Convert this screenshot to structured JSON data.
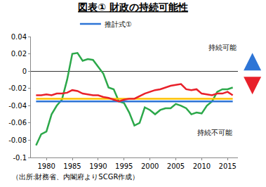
{
  "chart_data": {
    "type": "line",
    "title": "図表① 財政の持続可能性",
    "x": [
      1978,
      1979,
      1980,
      1981,
      1982,
      1983,
      1984,
      1985,
      1986,
      1987,
      1988,
      1989,
      1990,
      1991,
      1992,
      1993,
      1994,
      1995,
      1996,
      1997,
      1998,
      1999,
      2000,
      2001,
      2002,
      2003,
      2004,
      2005,
      2006,
      2007,
      2008,
      2009,
      2010,
      2011,
      2012,
      2013,
      2014,
      2015,
      2016
    ],
    "series": [
      {
        "color": "#2ca84a",
        "values": [
          -0.086,
          -0.073,
          -0.07,
          -0.05,
          -0.04,
          -0.033,
          -0.01,
          0.02,
          0.021,
          0.012,
          0.014,
          0.013,
          0.005,
          -0.003,
          -0.019,
          -0.021,
          -0.035,
          -0.037,
          -0.048,
          -0.063,
          -0.06,
          -0.042,
          -0.045,
          -0.05,
          -0.045,
          -0.043,
          -0.043,
          -0.038,
          -0.04,
          -0.043,
          -0.05,
          -0.048,
          -0.049,
          -0.04,
          -0.035,
          -0.024,
          -0.021,
          -0.021,
          -0.019
        ]
      },
      {
        "color": "#ffc000",
        "values": [
          -0.032,
          -0.032,
          -0.032,
          -0.032,
          -0.032,
          -0.032,
          -0.032,
          -0.032,
          -0.032,
          -0.032,
          -0.032,
          -0.032,
          -0.032,
          -0.032,
          -0.032,
          -0.032,
          -0.032,
          -0.032,
          -0.032,
          -0.032,
          -0.032,
          -0.032,
          -0.032,
          -0.032,
          -0.032,
          -0.032,
          -0.032,
          -0.032,
          -0.032,
          -0.032,
          -0.032,
          -0.032,
          -0.032,
          -0.032,
          -0.032,
          -0.032,
          -0.032,
          -0.032,
          -0.032
        ]
      },
      {
        "name": "推計式①",
        "color": "#2e75d6",
        "values": [
          -0.035,
          -0.035,
          -0.035,
          -0.035,
          -0.035,
          -0.035,
          -0.035,
          -0.035,
          -0.035,
          -0.035,
          -0.035,
          -0.035,
          -0.035,
          -0.035,
          -0.035,
          -0.035,
          -0.035,
          -0.035,
          -0.035,
          -0.035,
          -0.035,
          -0.035,
          -0.035,
          -0.035,
          -0.035,
          -0.035,
          -0.035,
          -0.035,
          -0.035,
          -0.035,
          -0.035,
          -0.035,
          -0.035,
          -0.035,
          -0.035,
          -0.035,
          -0.035,
          -0.035,
          -0.035
        ]
      },
      {
        "color": "#e8202a",
        "values": [
          -0.028,
          -0.028,
          -0.027,
          -0.028,
          -0.026,
          -0.026,
          -0.025,
          -0.022,
          -0.023,
          -0.026,
          -0.027,
          -0.028,
          -0.028,
          -0.03,
          -0.031,
          -0.033,
          -0.035,
          -0.033,
          -0.032,
          -0.032,
          -0.029,
          -0.026,
          -0.024,
          -0.022,
          -0.021,
          -0.019,
          -0.017,
          -0.016,
          -0.015,
          -0.021,
          -0.022,
          -0.021,
          -0.026,
          -0.027,
          -0.028,
          -0.026,
          -0.026,
          -0.024,
          -0.028
        ]
      }
    ],
    "xlim": [
      1977,
      2017
    ],
    "xticks": [
      1980,
      1985,
      1990,
      1995,
      2000,
      2005,
      2010,
      2015
    ],
    "ylim": [
      -0.1,
      0.04
    ],
    "yticks": [
      -0.1,
      -0.08,
      -0.06,
      -0.04,
      -0.02,
      0,
      0.02,
      0.04
    ],
    "grid": false,
    "legend": "top",
    "annotations": [
      "持続可能",
      "持続不可能"
    ],
    "source": "（出所:財務省、内閣府よりSCGR作成）"
  }
}
